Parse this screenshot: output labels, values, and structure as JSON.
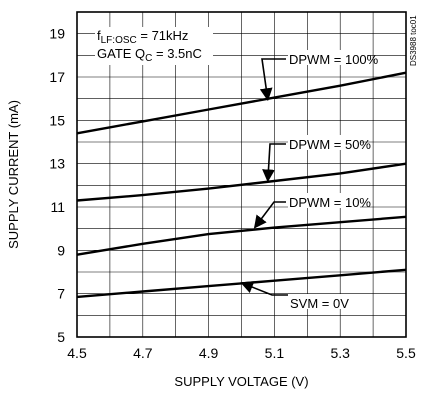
{
  "chart_data": {
    "type": "line",
    "title": "",
    "xlabel": "SUPPLY VOLTAGE (V)",
    "ylabel": "SUPPLY CURRENT (mA)",
    "xlim": [
      4.5,
      5.5
    ],
    "ylim": [
      5,
      20
    ],
    "x_ticks": [
      "4.5",
      "4.7",
      "4.9",
      "5.1",
      "5.3",
      "5.5"
    ],
    "y_ticks": [
      "5",
      "7",
      "9",
      "11",
      "13",
      "15",
      "17",
      "19"
    ],
    "grid": true,
    "series": [
      {
        "name": "DPWM = 100%",
        "x": [
          4.5,
          4.7,
          4.9,
          5.1,
          5.3,
          5.5
        ],
        "y": [
          14.4,
          14.95,
          15.5,
          16.05,
          16.6,
          17.2
        ]
      },
      {
        "name": "DPWM = 50%",
        "x": [
          4.5,
          4.7,
          4.9,
          5.1,
          5.3,
          5.5
        ],
        "y": [
          11.3,
          11.55,
          11.85,
          12.2,
          12.55,
          13.0
        ]
      },
      {
        "name": "DPWM = 10%",
        "x": [
          4.5,
          4.7,
          4.9,
          5.1,
          5.3,
          5.5
        ],
        "y": [
          8.8,
          9.3,
          9.75,
          10.05,
          10.3,
          10.55
        ]
      },
      {
        "name": "SVM = 0V",
        "x": [
          4.5,
          4.7,
          4.9,
          5.1,
          5.3,
          5.5
        ],
        "y": [
          6.85,
          7.1,
          7.35,
          7.6,
          7.85,
          8.1
        ]
      }
    ],
    "conditions": {
      "line1_main": "f",
      "line1_sub": "LF:OSC",
      "line1_rest": " = 71kHz",
      "line2_main": "GATE Q",
      "line2_sub": "C",
      "line2_rest": " = 3.5nC"
    },
    "annotations": [
      {
        "series": "DPWM = 100%",
        "text": "DPWM = 100%",
        "point": [
          5.08,
          15.95
        ]
      },
      {
        "series": "DPWM = 50%",
        "text": "DPWM = 50%",
        "point": [
          5.08,
          12.2
        ]
      },
      {
        "series": "DPWM = 10%",
        "text": "DPWM = 10%",
        "point": [
          5.04,
          10.05
        ]
      },
      {
        "series": "SVM = 0V",
        "text": "SVM = 0V",
        "point": [
          5.0,
          7.5
        ]
      }
    ],
    "doc_ref": "DS3988 toc01"
  }
}
